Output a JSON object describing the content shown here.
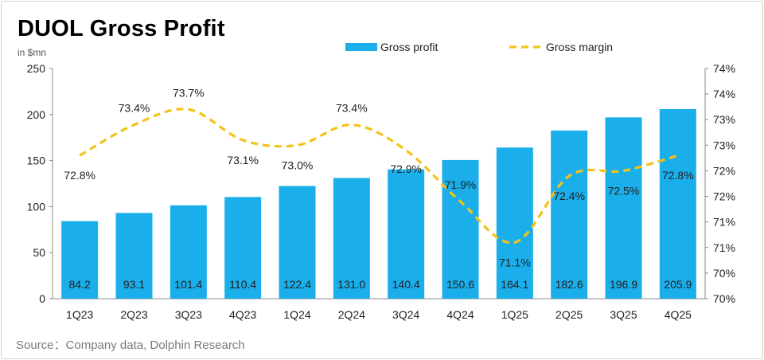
{
  "title": "DUOL Gross Profit",
  "unit_label": "in $mn",
  "source": "Source：Company data, Dolphin Research",
  "colors": {
    "bar": "#1aaeea",
    "line": "#f2c318"
  },
  "chart_data": {
    "type": "bar+line",
    "categories": [
      "1Q23",
      "2Q23",
      "3Q23",
      "4Q23",
      "1Q24",
      "2Q24",
      "3Q24",
      "4Q24",
      "1Q25",
      "2Q25",
      "3Q25",
      "4Q25"
    ],
    "series": [
      {
        "name": "Gross profit",
        "type": "bar",
        "axis": "left",
        "values": [
          84.2,
          93.1,
          101.4,
          110.4,
          122.4,
          131.0,
          140.4,
          150.6,
          164.1,
          182.6,
          196.9,
          205.9
        ],
        "labels": [
          "84.2",
          "93.1",
          "101.4",
          "110.4",
          "122.4",
          "131.0",
          "140.4",
          "150.6",
          "164.1",
          "182.6",
          "196.9",
          "205.9"
        ]
      },
      {
        "name": "Gross margin",
        "type": "line",
        "axis": "right",
        "style": "dashed-smooth",
        "values": [
          72.8,
          73.4,
          73.7,
          73.1,
          73.0,
          73.4,
          72.9,
          71.9,
          71.1,
          72.4,
          72.5,
          72.8
        ],
        "labels": [
          "72.8%",
          "73.4%",
          "73.7%",
          "73.1%",
          "73.0%",
          "73.4%",
          "72.9%",
          "71.9%",
          "71.1%",
          "72.4%",
          "72.5%",
          "72.8%"
        ]
      }
    ],
    "y_left": {
      "min": 0,
      "max": 250,
      "ticks": [
        0,
        50,
        100,
        150,
        200,
        250
      ]
    },
    "y_right": {
      "min": 70,
      "max": 74.5,
      "ticks": [
        70,
        70.5,
        71,
        71.5,
        72,
        72.5,
        73,
        73.5,
        74,
        74.5
      ],
      "tick_labels": [
        "70%",
        "70%",
        "71%",
        "71%",
        "72%",
        "72%",
        "73%",
        "73%",
        "74%",
        "74%"
      ]
    },
    "legend": {
      "position": "top"
    },
    "grid": false
  }
}
